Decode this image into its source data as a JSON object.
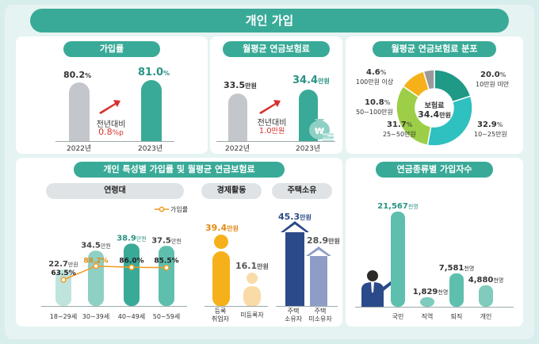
{
  "title": "개인 가입",
  "colors": {
    "teal": "#3aaa98",
    "gray": "#c3c6ca",
    "orange": "#f39a1f",
    "navy": "#2b4a8a",
    "red": "#d6312d"
  },
  "subscription_rate": {
    "title": "가입률",
    "bars": [
      {
        "year": "2022년",
        "value": "80.2",
        "unit": "%"
      },
      {
        "year": "2023년",
        "value": "81.0",
        "unit": "%"
      }
    ],
    "change_label": "전년대비",
    "change_value": "0.8",
    "change_unit": "%p"
  },
  "avg_premium": {
    "title": "월평균 연금보험료",
    "bars": [
      {
        "year": "2022년",
        "value": "33.5",
        "unit": "만원"
      },
      {
        "year": "2023년",
        "value": "34.4",
        "unit": "만원"
      }
    ],
    "change_label": "전년대비",
    "change_value": "1.0",
    "change_unit": "만원",
    "bag_label": "₩"
  },
  "premium_dist": {
    "title": "월평균 연금보험료 분포",
    "center_label": "보험료",
    "center_value": "34.4",
    "center_unit": "만원",
    "labels": [
      {
        "pct": "20.0",
        "unit": "%",
        "range": "10만원 미만"
      },
      {
        "pct": "32.9",
        "unit": "%",
        "range": "10~25만원"
      },
      {
        "pct": "31.7",
        "unit": "%",
        "range": "25~50만원"
      },
      {
        "pct": "10.8",
        "unit": "%",
        "range": "50~100만원"
      },
      {
        "pct": "4.6",
        "unit": "%",
        "range": "100만원 이상"
      }
    ]
  },
  "by_characteristic": {
    "title": "개인 특성별 가입률 및 월평균 연금보험료",
    "age": {
      "title": "연령대",
      "legend": "가입률",
      "groups": [
        {
          "label": "18~29세",
          "premium": "22.7",
          "rate": "63.5%"
        },
        {
          "label": "30~39세",
          "premium": "34.5",
          "rate": "88.2%"
        },
        {
          "label": "40~49세",
          "premium": "38.9",
          "rate": "86.0%"
        },
        {
          "label": "50~59세",
          "premium": "37.5",
          "rate": "85.5%"
        }
      ],
      "unit": "만원"
    },
    "economic": {
      "title": "경제활동",
      "groups": [
        {
          "label1": "등록",
          "label2": "취업자",
          "premium": "39.4"
        },
        {
          "label1": "미등록자",
          "label2": "",
          "premium": "16.1"
        }
      ],
      "unit": "만원"
    },
    "housing": {
      "title": "주택소유",
      "groups": [
        {
          "label1": "주택",
          "label2": "소유자",
          "premium": "45.3"
        },
        {
          "label1": "주택",
          "label2": "미소유자",
          "premium": "28.9"
        }
      ],
      "unit": "만원"
    }
  },
  "by_type": {
    "title": "연금종류별 가입자수",
    "unit": "천명",
    "groups": [
      {
        "label": "국민",
        "value": "21,567"
      },
      {
        "label": "직역",
        "value": "1,829"
      },
      {
        "label": "퇴직",
        "value": "7,581"
      },
      {
        "label": "개인",
        "value": "4,880"
      }
    ]
  },
  "chart_data": [
    {
      "type": "bar",
      "title": "가입률",
      "categories": [
        "2022년",
        "2023년"
      ],
      "values": [
        80.2,
        81.0
      ],
      "ylabel": "%"
    },
    {
      "type": "bar",
      "title": "월평균 연금보험료",
      "categories": [
        "2022년",
        "2023년"
      ],
      "values": [
        33.5,
        34.4
      ],
      "ylabel": "만원"
    },
    {
      "type": "pie",
      "title": "월평균 연금보험료 분포",
      "categories": [
        "10만원 미만",
        "10~25만원",
        "25~50만원",
        "50~100만원",
        "100만원 이상"
      ],
      "values": [
        20.0,
        32.9,
        31.7,
        10.8,
        4.6
      ]
    },
    {
      "type": "bar",
      "title": "연령대",
      "categories": [
        "18~29세",
        "30~39세",
        "40~49세",
        "50~59세"
      ],
      "series": [
        {
          "name": "월평균 연금보험료",
          "values": [
            22.7,
            34.5,
            38.9,
            37.5
          ]
        },
        {
          "name": "가입률",
          "values": [
            63.5,
            88.2,
            86.0,
            85.5
          ]
        }
      ]
    },
    {
      "type": "bar",
      "title": "경제활동",
      "categories": [
        "등록 취업자",
        "미등록자"
      ],
      "values": [
        39.4,
        16.1
      ]
    },
    {
      "type": "bar",
      "title": "주택소유",
      "categories": [
        "주택 소유자",
        "주택 미소유자"
      ],
      "values": [
        45.3,
        28.9
      ]
    },
    {
      "type": "bar",
      "title": "연금종류별 가입자수",
      "categories": [
        "국민",
        "직역",
        "퇴직",
        "개인"
      ],
      "values": [
        21567,
        1829,
        7581,
        4880
      ]
    }
  ]
}
